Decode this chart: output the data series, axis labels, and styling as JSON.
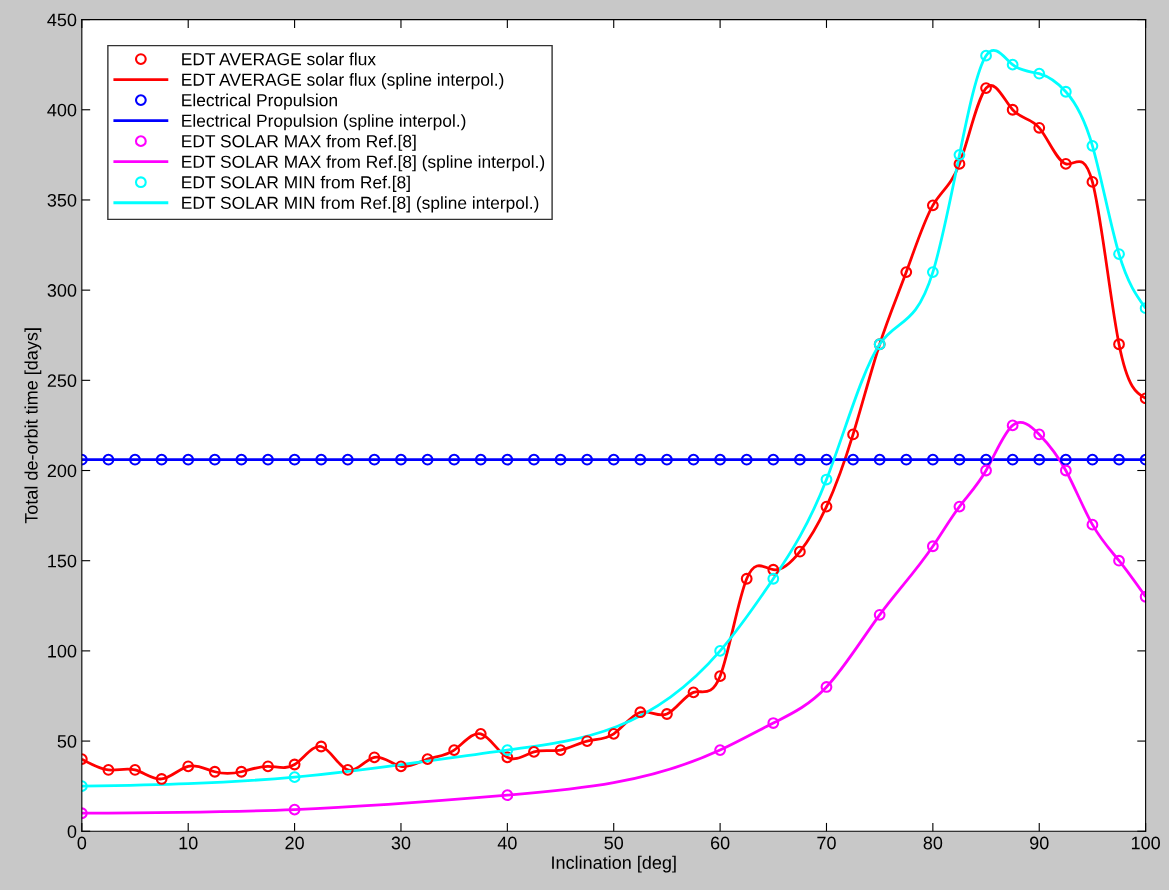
{
  "chart_data": {
    "type": "line",
    "xlabel": "Inclination [deg]",
    "ylabel": "Total de-orbit time [days]",
    "xlim": [
      0,
      100
    ],
    "ylim": [
      0,
      450
    ],
    "xticks": [
      0,
      10,
      20,
      30,
      40,
      50,
      60,
      70,
      80,
      90,
      100
    ],
    "yticks": [
      0,
      50,
      100,
      150,
      200,
      250,
      300,
      350,
      400,
      450
    ],
    "grid": false,
    "legend": "top left",
    "series": [
      {
        "name": "EDT AVERAGE solar flux",
        "type": "scatter",
        "marker": "circle",
        "color": "#ff0000",
        "x": [
          0,
          2.5,
          5,
          7.5,
          10,
          12.5,
          15,
          17.5,
          20,
          22.5,
          25,
          27.5,
          30,
          32.5,
          35,
          37.5,
          40,
          42.5,
          45,
          47.5,
          50,
          52.5,
          55,
          57.5,
          60,
          62.5,
          65,
          67.5,
          70,
          72.5,
          75,
          77.5,
          80,
          82.5,
          85,
          87.5,
          90,
          92.5,
          95,
          97.5,
          100
        ],
        "values": [
          40,
          34,
          34,
          29,
          36,
          33,
          33,
          36,
          37,
          47,
          34,
          41,
          36,
          40,
          45,
          54,
          41,
          44,
          45,
          50,
          54,
          66,
          65,
          77,
          86,
          140,
          145,
          155,
          180,
          220,
          270,
          310,
          347,
          370,
          412,
          400,
          390,
          370,
          360,
          270,
          240
        ]
      },
      {
        "name": "EDT AVERAGE solar flux (spline interpol.)",
        "color": "#ff0000",
        "x": [
          0,
          2.5,
          5,
          7.5,
          10,
          12.5,
          15,
          17.5,
          20,
          22.5,
          25,
          27.5,
          30,
          32.5,
          35,
          37.5,
          40,
          42.5,
          45,
          47.5,
          50,
          52.5,
          55,
          57.5,
          60,
          62.5,
          65,
          67.5,
          70,
          72.5,
          75,
          77.5,
          80,
          82.5,
          85,
          87.5,
          90,
          92.5,
          95,
          97.5,
          100
        ],
        "values": [
          40,
          34,
          34,
          29,
          36,
          33,
          33,
          36,
          37,
          47,
          34,
          41,
          36,
          40,
          45,
          54,
          41,
          44,
          45,
          50,
          54,
          66,
          65,
          77,
          86,
          140,
          145,
          155,
          180,
          220,
          270,
          310,
          347,
          370,
          412,
          400,
          390,
          370,
          360,
          270,
          240
        ]
      },
      {
        "name": "Electrical Propulsion",
        "type": "scatter",
        "marker": "circle",
        "color": "#0000ff",
        "x": [
          0,
          2.5,
          5,
          7.5,
          10,
          12.5,
          15,
          17.5,
          20,
          22.5,
          25,
          27.5,
          30,
          32.5,
          35,
          37.5,
          40,
          42.5,
          45,
          47.5,
          50,
          52.5,
          55,
          57.5,
          60,
          62.5,
          65,
          67.5,
          70,
          72.5,
          75,
          77.5,
          80,
          82.5,
          85,
          87.5,
          90,
          92.5,
          95,
          97.5,
          100
        ],
        "values": [
          206,
          206,
          206,
          206,
          206,
          206,
          206,
          206,
          206,
          206,
          206,
          206,
          206,
          206,
          206,
          206,
          206,
          206,
          206,
          206,
          206,
          206,
          206,
          206,
          206,
          206,
          206,
          206,
          206,
          206,
          206,
          206,
          206,
          206,
          206,
          206,
          206,
          206,
          206,
          206,
          206
        ]
      },
      {
        "name": "Electrical Propulsion (spline interpol.)",
        "color": "#0000ff",
        "x": [
          0,
          2.5,
          5,
          7.5,
          10,
          12.5,
          15,
          17.5,
          20,
          22.5,
          25,
          27.5,
          30,
          32.5,
          35,
          37.5,
          40,
          42.5,
          45,
          47.5,
          50,
          52.5,
          55,
          57.5,
          60,
          62.5,
          65,
          67.5,
          70,
          72.5,
          75,
          77.5,
          80,
          82.5,
          85,
          87.5,
          90,
          92.5,
          95,
          97.5,
          100
        ],
        "values": [
          206,
          206,
          206,
          206,
          206,
          206,
          206,
          206,
          206,
          206,
          206,
          206,
          206,
          206,
          206,
          206,
          206,
          206,
          206,
          206,
          206,
          206,
          206,
          206,
          206,
          206,
          206,
          206,
          206,
          206,
          206,
          206,
          206,
          206,
          206,
          206,
          206,
          206,
          206,
          206,
          206
        ]
      },
      {
        "name": "EDT SOLAR MAX from Ref.[8]",
        "type": "scatter",
        "marker": "circle",
        "color": "#ff00ff",
        "x": [
          0,
          20,
          40,
          60,
          65,
          70,
          75,
          80,
          82.5,
          85,
          87.5,
          90,
          92.5,
          95,
          97.5,
          100
        ],
        "values": [
          10,
          12,
          20,
          45,
          60,
          80,
          120,
          158,
          180,
          200,
          225,
          220,
          200,
          170,
          150,
          130
        ]
      },
      {
        "name": "EDT SOLAR MAX from Ref.[8] (spline interpol.)",
        "color": "#ff00ff",
        "x": [
          0,
          20,
          40,
          60,
          65,
          70,
          75,
          80,
          82.5,
          85,
          87.5,
          90,
          92.5,
          95,
          97.5,
          100
        ],
        "values": [
          10,
          12,
          20,
          45,
          60,
          80,
          120,
          158,
          180,
          200,
          225,
          220,
          200,
          170,
          150,
          130
        ]
      },
      {
        "name": "EDT SOLAR MIN from Ref.[8]",
        "type": "scatter",
        "marker": "circle",
        "color": "#00ffff",
        "x": [
          0,
          20,
          40,
          60,
          65,
          70,
          75,
          80,
          82.5,
          85,
          87.5,
          90,
          92.5,
          95,
          97.5,
          100
        ],
        "values": [
          25,
          30,
          45,
          100,
          140,
          195,
          270,
          310,
          375,
          430,
          425,
          420,
          410,
          380,
          320,
          290
        ]
      },
      {
        "name": "EDT SOLAR MIN from Ref.[8] (spline interpol.)",
        "color": "#00ffff",
        "x": [
          0,
          20,
          40,
          60,
          65,
          70,
          75,
          80,
          82.5,
          85,
          87.5,
          90,
          92.5,
          95,
          97.5,
          100
        ],
        "values": [
          25,
          30,
          45,
          100,
          140,
          195,
          270,
          310,
          375,
          430,
          425,
          420,
          410,
          380,
          320,
          290
        ]
      }
    ]
  }
}
